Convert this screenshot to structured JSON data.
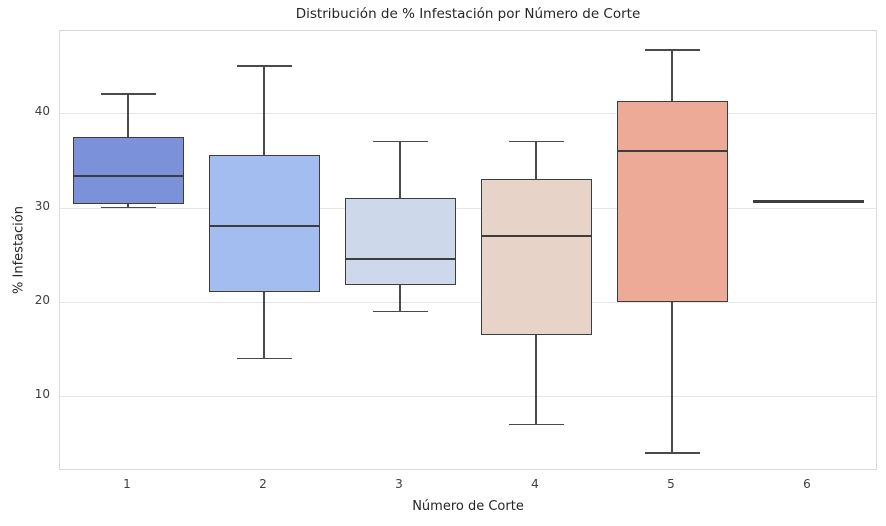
{
  "chart_data": {
    "type": "boxplot",
    "title": "Distribución de % Infestación por Número de Corte",
    "xlabel": "Número de Corte",
    "ylabel": "% Infestación",
    "categories": [
      "1",
      "2",
      "3",
      "4",
      "5",
      "6"
    ],
    "ylim": [
      2.3,
      48.7
    ],
    "yticks": [
      10,
      20,
      30,
      40
    ],
    "grid": "horizontal",
    "legend": "none",
    "series": [
      {
        "category": "1",
        "whisker_low": 30.0,
        "q1": 30.4,
        "median": 33.3,
        "q3": 37.5,
        "whisker_high": 42.0,
        "fill": "#7b92da"
      },
      {
        "category": "2",
        "whisker_low": 14.0,
        "q1": 21.0,
        "median": 28.0,
        "q3": 35.6,
        "whisker_high": 45.0,
        "fill": "#a4bdf0"
      },
      {
        "category": "3",
        "whisker_low": 19.0,
        "q1": 21.8,
        "median": 24.5,
        "q3": 31.0,
        "whisker_high": 37.0,
        "fill": "#cdd9ea"
      },
      {
        "category": "4",
        "whisker_low": 7.0,
        "q1": 16.5,
        "median": 27.0,
        "q3": 33.0,
        "whisker_high": 37.0,
        "fill": "#e8d3c8"
      },
      {
        "category": "5",
        "whisker_low": 4.0,
        "q1": 20.0,
        "median": 36.0,
        "q3": 41.3,
        "whisker_high": 46.7,
        "fill": "#ecaa97"
      },
      {
        "category": "6",
        "whisker_low": 30.7,
        "q1": 30.7,
        "median": 30.7,
        "q3": 30.7,
        "whisker_high": 30.7,
        "fill": "#d97257"
      }
    ],
    "colors": {
      "box_edge": "#3d3d3d",
      "median": "#3d3d3d",
      "whisker": "#4a4a4a",
      "grid": "#e7e7e7",
      "axes_border": "#d9d9d9",
      "title_text": "#262626",
      "tick_text": "#3f3f3f",
      "background": "#ffffff"
    }
  }
}
